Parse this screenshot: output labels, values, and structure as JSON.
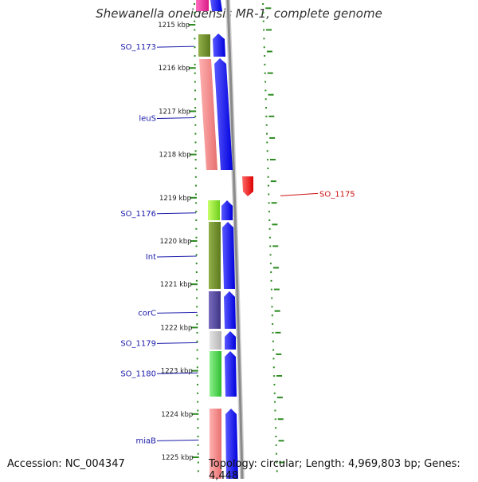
{
  "title": "Shewanella oneidensis MR-1, complete genome",
  "footer": {
    "accession": "Accession: NC_004347",
    "summary": "Topology: circular; Length: 4,969,803 bp; Genes: 4,448"
  },
  "axis_ticks": [
    {
      "kbp": 1215,
      "label": "1215 kbp"
    },
    {
      "kbp": 1216,
      "label": "1216 kbp"
    },
    {
      "kbp": 1217,
      "label": "1217 kbp"
    },
    {
      "kbp": 1218,
      "label": "1218 kbp"
    },
    {
      "kbp": 1219,
      "label": "1219 kbp"
    },
    {
      "kbp": 1220,
      "label": "1220 kbp"
    },
    {
      "kbp": 1221,
      "label": "1221 kbp"
    },
    {
      "kbp": 1222,
      "label": "1222 kbp"
    },
    {
      "kbp": 1223,
      "label": "1223 kbp"
    },
    {
      "kbp": 1224,
      "label": "1224 kbp"
    },
    {
      "kbp": 1225,
      "label": "1225 kbp"
    }
  ],
  "labels_left": [
    {
      "text": "SO_1173",
      "kbp": 1215.5,
      "color": "#1a1aaa"
    },
    {
      "text": "leuS",
      "kbp": 1217.15,
      "color": "#1a1aaa"
    },
    {
      "text": "SO_1176",
      "kbp": 1219.35,
      "color": "#1a1aaa"
    },
    {
      "text": "Int",
      "kbp": 1220.35,
      "color": "#1a1aaa"
    },
    {
      "text": "corC",
      "kbp": 1221.65,
      "color": "#1a1aaa"
    },
    {
      "text": "SO_1179",
      "kbp": 1222.35,
      "color": "#1a1aaa"
    },
    {
      "text": "SO_1180",
      "kbp": 1223.05,
      "color": "#1a1aaa"
    },
    {
      "text": "miaB",
      "kbp": 1224.6,
      "color": "#1a1aaa"
    }
  ],
  "labels_right": [
    {
      "text": "SO_1175",
      "kbp": 1218.9,
      "color": "#cc1111"
    }
  ],
  "colors": {
    "axis_green": "#2e8b22",
    "backbone": "#8a8a8a",
    "forward_cds": "#0000ee",
    "reverse_cds": "#ee0000"
  }
}
